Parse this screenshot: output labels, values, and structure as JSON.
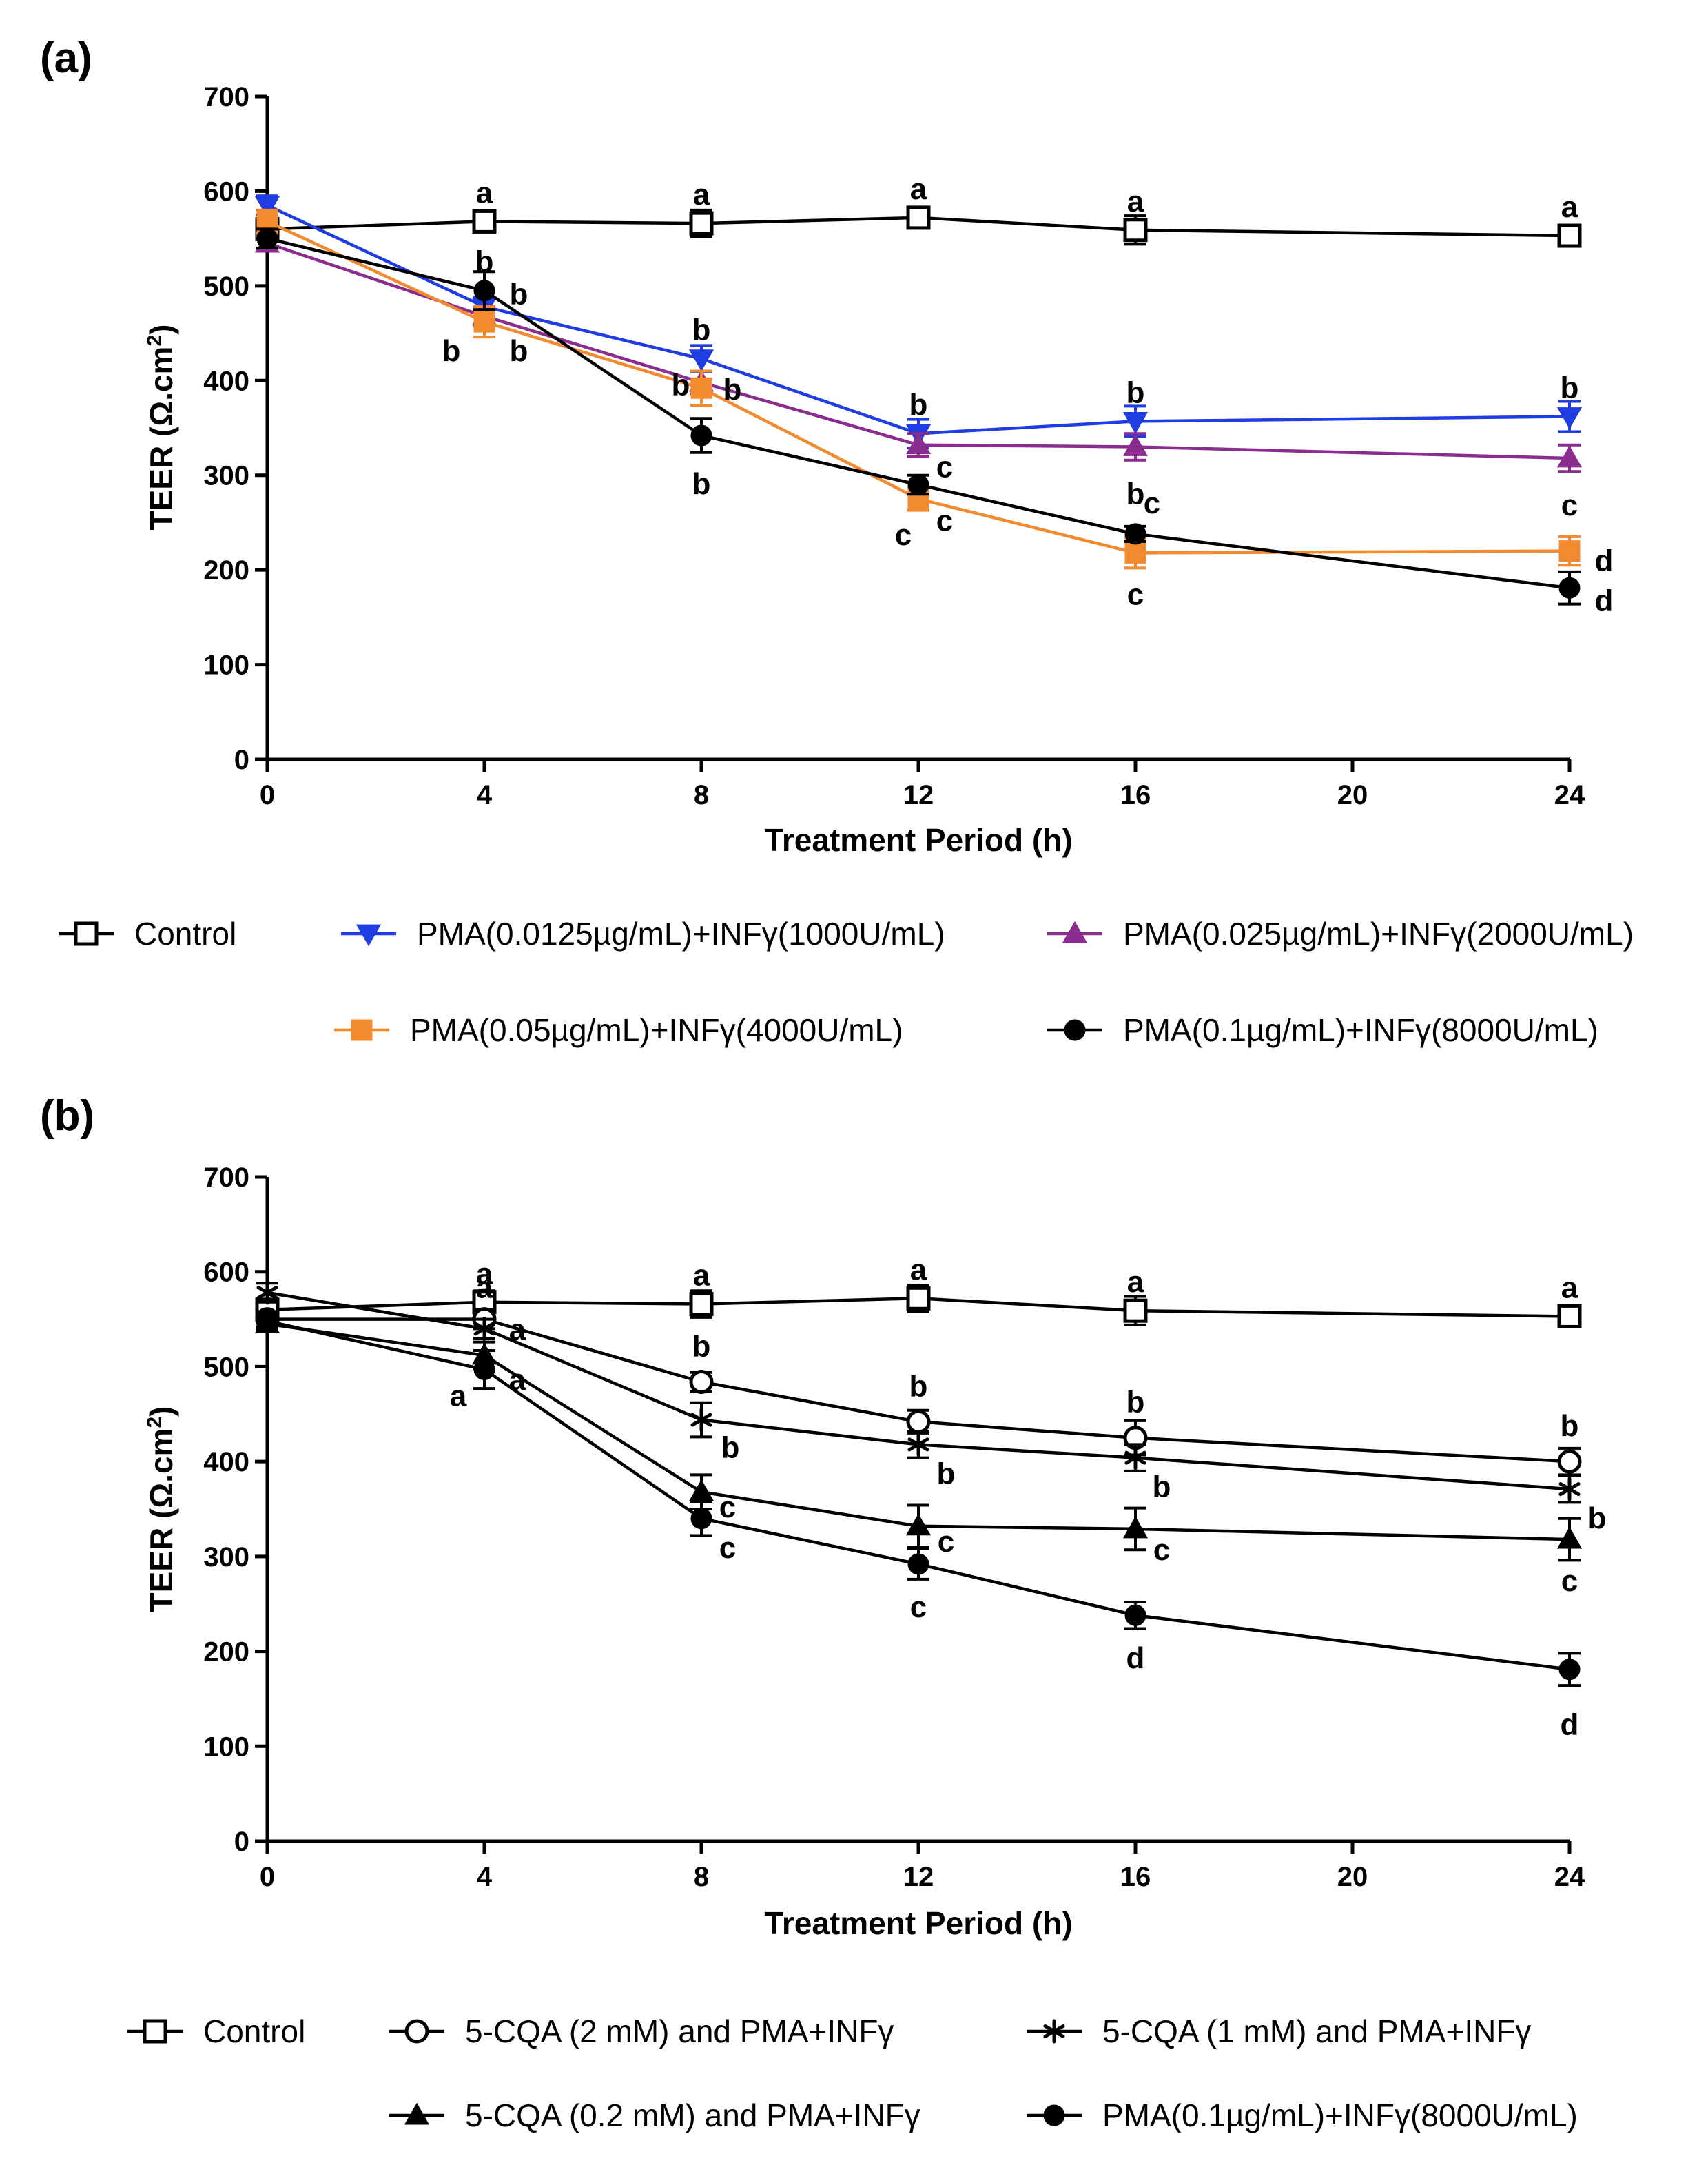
{
  "chart_data": [
    {
      "type": "line",
      "panel_label": "(a)",
      "xlabel": "Treatment Period (h)",
      "ylabel": "TEER (Ω.cm",
      "ylabel_sup": "2",
      "ylabel_close": ")",
      "xlim": [
        0,
        24
      ],
      "ylim": [
        0,
        700
      ],
      "xticks": [
        0,
        4,
        8,
        12,
        16,
        20,
        24
      ],
      "yticks": [
        0,
        100,
        200,
        300,
        400,
        500,
        600,
        700
      ],
      "x": [
        0,
        4,
        8,
        12,
        16,
        24
      ],
      "series": [
        {
          "name": "Control",
          "color": "#000000",
          "marker": "open-square",
          "values": [
            560,
            568,
            566,
            572,
            559,
            553
          ],
          "errors": [
            8,
            10,
            14,
            8,
            15,
            10
          ]
        },
        {
          "name": "PMA(0.0125µg/mL)+INFγ(1000U/mL)",
          "color": "#1f3de0",
          "marker": "triangle-down",
          "values": [
            585,
            478,
            423,
            344,
            357,
            362
          ],
          "errors": [
            10,
            10,
            14,
            15,
            16,
            16
          ]
        },
        {
          "name": "PMA(0.025µg/mL)+INFγ(2000U/mL)",
          "color": "#8b2d8e",
          "marker": "triangle-up",
          "values": [
            545,
            468,
            398,
            332,
            330,
            318
          ],
          "errors": [
            8,
            10,
            12,
            12,
            14,
            14
          ]
        },
        {
          "name": "PMA(0.05µg/mL)+INFγ(4000U/mL)",
          "color": "#f28a30",
          "marker": "filled-square",
          "values": [
            568,
            462,
            392,
            275,
            218,
            220
          ],
          "errors": [
            12,
            16,
            18,
            12,
            16,
            15
          ]
        },
        {
          "name": "PMA(0.1µg/mL)+INFγ(8000U/mL)",
          "color": "#000000",
          "marker": "filled-circle",
          "values": [
            550,
            495,
            342,
            290,
            238,
            181
          ],
          "errors": [
            10,
            20,
            18,
            10,
            8,
            17
          ]
        }
      ],
      "annotations": [
        {
          "x": 4,
          "y": 568,
          "text": "a"
        },
        {
          "x": 8,
          "y": 566,
          "text": "a"
        },
        {
          "x": 12,
          "y": 572,
          "text": "a"
        },
        {
          "x": 16,
          "y": 559,
          "text": "a"
        },
        {
          "x": 24,
          "y": 553,
          "text": "a"
        },
        {
          "x": 4,
          "y": 495,
          "text": "b"
        },
        {
          "x": 4,
          "y": 495,
          "text": "b"
        },
        {
          "x": 4,
          "y": 462,
          "text": "b"
        },
        {
          "x": 4,
          "y": 462,
          "text": "b"
        },
        {
          "x": 8,
          "y": 423,
          "text": "b"
        },
        {
          "x": 8,
          "y": 398,
          "text": "b"
        },
        {
          "x": 8,
          "y": 392,
          "text": "b"
        },
        {
          "x": 8,
          "y": 342,
          "text": "b"
        },
        {
          "x": 12,
          "y": 344,
          "text": "b"
        },
        {
          "x": 12,
          "y": 332,
          "text": "c"
        },
        {
          "x": 12,
          "y": 275,
          "text": "c"
        },
        {
          "x": 12,
          "y": 290,
          "text": "c"
        },
        {
          "x": 16,
          "y": 357,
          "text": "b"
        },
        {
          "x": 16,
          "y": 330,
          "text": "b"
        },
        {
          "x": 16,
          "y": 238,
          "text": "c"
        },
        {
          "x": 16,
          "y": 218,
          "text": "c"
        },
        {
          "x": 24,
          "y": 362,
          "text": "b"
        },
        {
          "x": 24,
          "y": 318,
          "text": "c"
        },
        {
          "x": 24,
          "y": 220,
          "text": "d"
        },
        {
          "x": 24,
          "y": 181,
          "text": "d"
        }
      ]
    },
    {
      "type": "line",
      "panel_label": "(b)",
      "xlabel": "Treatment Period (h)",
      "ylabel": "TEER (Ω.cm",
      "ylabel_sup": "2",
      "ylabel_close": ")",
      "xlim": [
        0,
        24
      ],
      "ylim": [
        0,
        700
      ],
      "xticks": [
        0,
        4,
        8,
        12,
        16,
        20,
        24
      ],
      "yticks": [
        0,
        100,
        200,
        300,
        400,
        500,
        600,
        700
      ],
      "x": [
        0,
        4,
        8,
        12,
        16,
        24
      ],
      "series": [
        {
          "name": "Control",
          "color": "#000000",
          "marker": "open-square",
          "values": [
            560,
            568,
            566,
            572,
            559,
            553
          ],
          "errors": [
            8,
            12,
            14,
            14,
            15,
            10
          ]
        },
        {
          "name": "5-CQA (2 mM) and PMA+INFγ",
          "color": "#000000",
          "marker": "open-circle",
          "values": [
            550,
            550,
            484,
            442,
            425,
            400
          ],
          "errors": [
            8,
            10,
            10,
            12,
            18,
            14
          ]
        },
        {
          "name": "5-CQA (1 mM) and PMA+INFγ",
          "color": "#000000",
          "marker": "asterisk",
          "values": [
            578,
            540,
            444,
            418,
            404,
            371
          ],
          "errors": [
            10,
            10,
            18,
            14,
            14,
            14
          ]
        },
        {
          "name": "5-CQA (0.2 mM) and PMA+INFγ",
          "color": "#000000",
          "marker": "triangle-up",
          "values": [
            545,
            512,
            368,
            332,
            329,
            318
          ],
          "errors": [
            8,
            14,
            18,
            22,
            22,
            22
          ]
        },
        {
          "name": "PMA(0.1µg/mL)+INFγ(8000U/mL)",
          "color": "#000000",
          "marker": "filled-circle",
          "values": [
            548,
            497,
            340,
            292,
            238,
            181
          ],
          "errors": [
            8,
            20,
            18,
            16,
            14,
            17
          ]
        }
      ],
      "annotations": [
        {
          "x": 4,
          "y": 568,
          "text": "a"
        },
        {
          "x": 8,
          "y": 566,
          "text": "a"
        },
        {
          "x": 12,
          "y": 572,
          "text": "a"
        },
        {
          "x": 16,
          "y": 559,
          "text": "a"
        },
        {
          "x": 24,
          "y": 553,
          "text": "a"
        },
        {
          "x": 4,
          "y": 550,
          "text": "a"
        },
        {
          "x": 4,
          "y": 540,
          "text": "a"
        },
        {
          "x": 4,
          "y": 497,
          "text": "a"
        },
        {
          "x": 4,
          "y": 512,
          "text": "a"
        },
        {
          "x": 8,
          "y": 484,
          "text": "b"
        },
        {
          "x": 8,
          "y": 444,
          "text": "b"
        },
        {
          "x": 8,
          "y": 368,
          "text": "c"
        },
        {
          "x": 8,
          "y": 340,
          "text": "c"
        },
        {
          "x": 12,
          "y": 442,
          "text": "b"
        },
        {
          "x": 12,
          "y": 418,
          "text": "b"
        },
        {
          "x": 12,
          "y": 332,
          "text": "c"
        },
        {
          "x": 12,
          "y": 292,
          "text": "c"
        },
        {
          "x": 16,
          "y": 425,
          "text": "b"
        },
        {
          "x": 16,
          "y": 404,
          "text": "b"
        },
        {
          "x": 16,
          "y": 329,
          "text": "c"
        },
        {
          "x": 16,
          "y": 238,
          "text": "d"
        },
        {
          "x": 24,
          "y": 400,
          "text": "b"
        },
        {
          "x": 24,
          "y": 371,
          "text": "b"
        },
        {
          "x": 24,
          "y": 318,
          "text": "c"
        },
        {
          "x": 24,
          "y": 181,
          "text": "d"
        }
      ]
    }
  ]
}
